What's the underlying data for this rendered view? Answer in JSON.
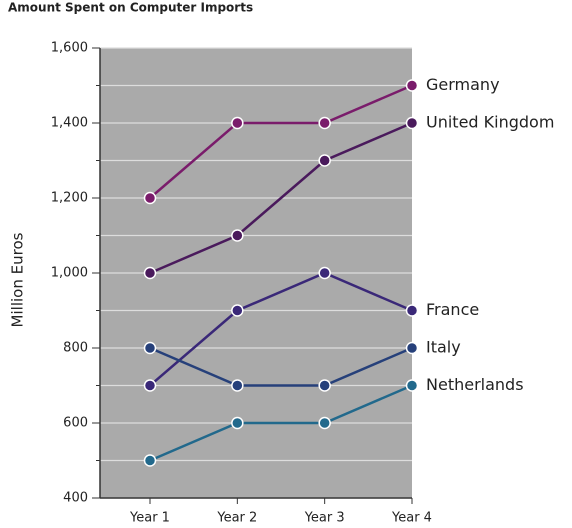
{
  "chart_data": {
    "type": "line",
    "title": "Amount Spent on Computer Imports",
    "y_label": "Million Euros",
    "categories": [
      "Year 1",
      "Year 2",
      "Year 3",
      "Year 4"
    ],
    "series": [
      {
        "name": "Germany",
        "color": "#7a1c6b",
        "values": [
          1200,
          1400,
          1400,
          1500
        ]
      },
      {
        "name": "United Kingdom",
        "color": "#4a1a5c",
        "values": [
          1000,
          1100,
          1300,
          1400
        ]
      },
      {
        "name": "France",
        "color": "#3a2878",
        "values": [
          700,
          900,
          1000,
          900
        ]
      },
      {
        "name": "Italy",
        "color": "#26407a",
        "values": [
          800,
          700,
          700,
          800
        ]
      },
      {
        "name": "Netherlands",
        "color": "#22698c",
        "values": [
          500,
          600,
          600,
          700
        ]
      }
    ],
    "ylim": [
      400,
      1600
    ],
    "yticks": [
      400,
      600,
      800,
      {
        "value": 1000,
        "label": "1,000"
      },
      {
        "value": 1200,
        "label": "1,200"
      },
      {
        "value": 1400,
        "label": "1,400"
      },
      {
        "value": 1600,
        "label": "1,600"
      }
    ],
    "grid": true,
    "plot_background": "#aaaaaa"
  }
}
